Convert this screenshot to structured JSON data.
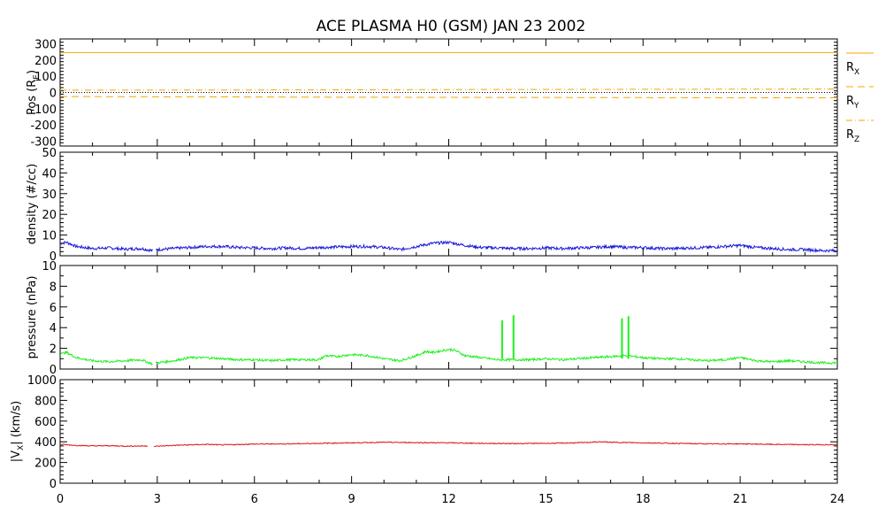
{
  "title": "ACE PLASMA H0 (GSM)   JAN 23 2002",
  "colors": {
    "position": "#f0a800",
    "density": "#1a1ad8",
    "pressure": "#1ef01e",
    "velocity": "#e01414",
    "axis": "#000000"
  },
  "chart_data": [
    {
      "type": "line",
      "id": "pos",
      "ylabel": "Pos (R",
      "ylabel_sub": "E",
      "ylim": [
        -330,
        330
      ],
      "yticks": [
        -300,
        -200,
        -100,
        0,
        100,
        200,
        300
      ],
      "xlim": [
        0,
        24
      ],
      "series": [
        {
          "name": "R",
          "name_sub": "X",
          "dash": "solid",
          "x": [
            0,
            24
          ],
          "values": [
            246,
            246
          ]
        },
        {
          "name": "R",
          "name_sub": "Y",
          "dash": "dashed",
          "x": [
            0,
            4,
            8,
            12,
            16,
            20,
            24
          ],
          "values": [
            -25,
            -27,
            -29,
            -30,
            -31,
            -32,
            -33
          ]
        },
        {
          "name": "R",
          "name_sub": "Z",
          "dash": "dashdot",
          "x": [
            0,
            4,
            8,
            12,
            16,
            20,
            24
          ],
          "values": [
            14,
            15,
            16,
            18,
            19,
            20,
            21
          ]
        }
      ],
      "zero_line": true
    },
    {
      "type": "line",
      "id": "density",
      "ylabel": "density (#/cc)",
      "ylim": [
        0,
        50
      ],
      "yticks": [
        0,
        10,
        20,
        30,
        40,
        50
      ],
      "xlim": [
        0,
        24
      ],
      "gaps": [
        [
          2.85,
          2.95
        ]
      ],
      "series": [
        {
          "name": "",
          "x": [
            0,
            0.2,
            0.5,
            1,
            1.5,
            2,
            2.5,
            2.85,
            3,
            3.5,
            4,
            4.5,
            5,
            5.5,
            6,
            6.5,
            7,
            7.5,
            8,
            8.5,
            9,
            9.5,
            10,
            10.5,
            11,
            11.5,
            12,
            12.5,
            13,
            13.5,
            14,
            14.5,
            15,
            15.5,
            16,
            16.5,
            17,
            17.5,
            18,
            18.5,
            19,
            19.5,
            20,
            20.5,
            21,
            21.5,
            22,
            22.5,
            23,
            23.5,
            24
          ],
          "values": [
            6,
            6.5,
            4.5,
            3.5,
            3.8,
            3.2,
            3.5,
            2.5,
            3,
            3.5,
            4,
            4.5,
            4.5,
            4,
            3.8,
            3.5,
            3.8,
            3.5,
            4,
            4.2,
            4.5,
            4.5,
            4,
            3,
            4.5,
            6,
            6.5,
            5,
            4,
            3.8,
            3.5,
            3.5,
            3.8,
            3.5,
            3.8,
            4,
            4.5,
            4,
            4,
            3.5,
            3.5,
            3.8,
            4,
            4.5,
            5,
            4,
            3.5,
            3,
            3,
            2.5,
            2.5
          ]
        }
      ]
    },
    {
      "type": "line",
      "id": "pressure",
      "ylabel": "pressure (nPa)",
      "ylim": [
        0,
        10
      ],
      "yticks": [
        0,
        2,
        4,
        6,
        8,
        10
      ],
      "xlim": [
        0,
        24
      ],
      "gaps": [
        [
          2.85,
          2.95
        ]
      ],
      "series": [
        {
          "name": "",
          "x": [
            0,
            0.2,
            0.5,
            1,
            1.5,
            2,
            2.5,
            2.85,
            3,
            3.5,
            4,
            4.5,
            5,
            5.5,
            6,
            6.5,
            7,
            7.5,
            8,
            8.2,
            8.5,
            9,
            9.5,
            10,
            10.5,
            11,
            11.3,
            11.5,
            12,
            12.2,
            12.5,
            13,
            13.5,
            14,
            14.5,
            15,
            15.5,
            16,
            16.5,
            17,
            17.5,
            18,
            18.5,
            19,
            19.5,
            20,
            20.5,
            21,
            21.5,
            22,
            22.5,
            23,
            23.5,
            24
          ],
          "values": [
            1.5,
            1.6,
            1.1,
            0.8,
            0.7,
            0.8,
            0.9,
            0.5,
            0.6,
            0.8,
            1.1,
            1.1,
            1.0,
            0.9,
            0.9,
            0.8,
            0.9,
            0.9,
            0.9,
            1.3,
            1.2,
            1.4,
            1.3,
            1.0,
            0.8,
            1.3,
            1.7,
            1.6,
            1.9,
            1.8,
            1.3,
            1.1,
            0.9,
            0.9,
            0.9,
            1.0,
            0.9,
            1.0,
            1.1,
            1.2,
            1.3,
            1.1,
            1.0,
            1.0,
            0.9,
            0.8,
            0.9,
            1.1,
            0.8,
            0.7,
            0.8,
            0.7,
            0.6,
            0.6
          ]
        }
      ],
      "spikes": [
        {
          "x": 13.65,
          "value": 4.7
        },
        {
          "x": 14.0,
          "value": 5.2
        },
        {
          "x": 17.35,
          "value": 4.9
        },
        {
          "x": 17.55,
          "value": 5.1
        }
      ]
    },
    {
      "type": "line",
      "id": "velocity",
      "ylabel": "|V",
      "ylabel_sub": "X",
      "ylabel_tail": "| (km/s)",
      "ylim": [
        0,
        1000
      ],
      "yticks": [
        0,
        200,
        400,
        600,
        800,
        1000
      ],
      "xlim": [
        0,
        24
      ],
      "xticks": [
        0,
        3,
        6,
        9,
        12,
        15,
        18,
        21,
        24
      ],
      "gaps": [
        [
          2.7,
          2.9
        ]
      ],
      "series": [
        {
          "name": "",
          "x": [
            0,
            0.5,
            1,
            1.5,
            2,
            2.7,
            2.9,
            3.5,
            4,
            4.5,
            5,
            6,
            7,
            8,
            9,
            10,
            11,
            12,
            13,
            14,
            15,
            16,
            16.7,
            17,
            18,
            19,
            20,
            21,
            22,
            23,
            24
          ],
          "values": [
            375,
            365,
            360,
            362,
            358,
            360,
            355,
            365,
            370,
            375,
            370,
            378,
            380,
            385,
            390,
            395,
            392,
            390,
            385,
            383,
            385,
            390,
            400,
            395,
            390,
            385,
            380,
            380,
            375,
            372,
            372
          ]
        }
      ]
    }
  ],
  "xlim": [
    0,
    24
  ],
  "xticks": [
    0,
    3,
    6,
    9,
    12,
    15,
    18,
    21,
    24
  ],
  "xtick_labels": [
    "0",
    "3",
    "6",
    "9",
    "12",
    "15",
    "18",
    "21",
    "24"
  ]
}
